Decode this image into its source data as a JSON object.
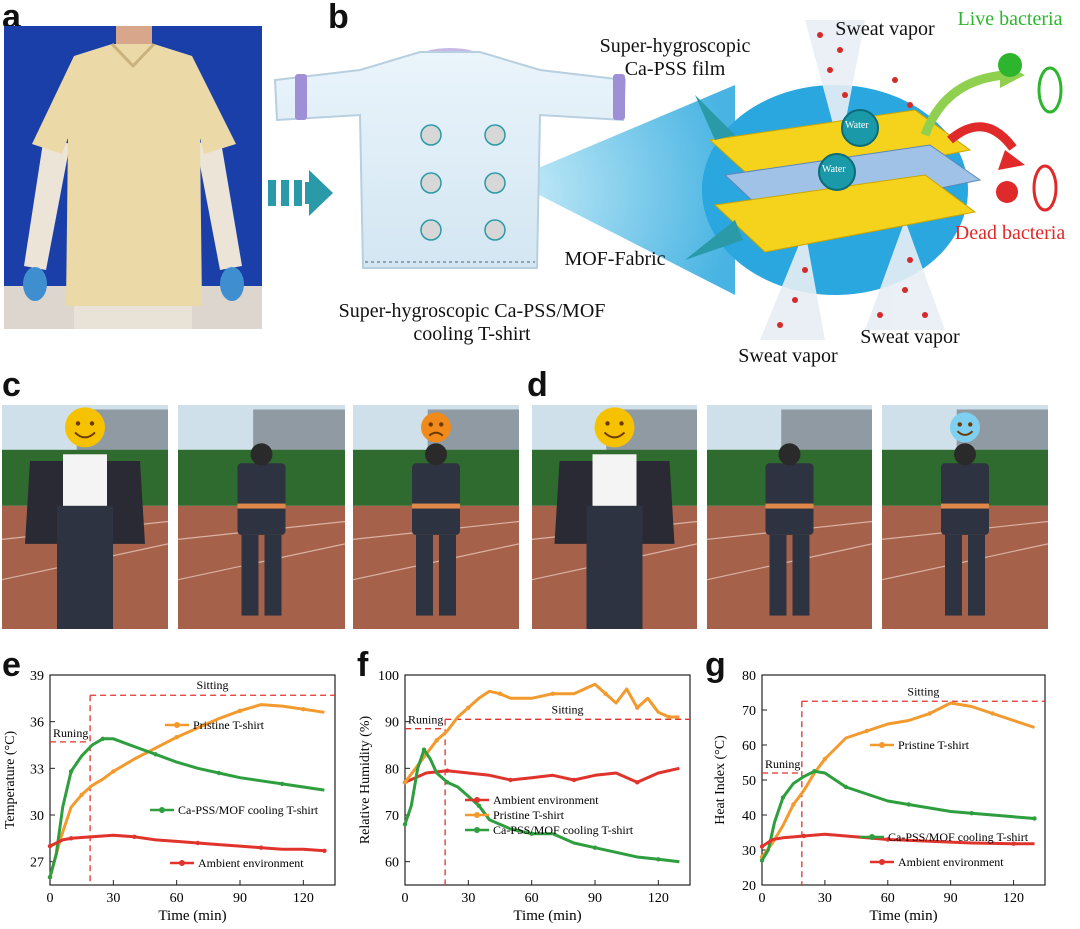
{
  "panel_labels": {
    "a": "a",
    "b": "b",
    "c": "c",
    "d": "d",
    "e": "e",
    "f": "f",
    "g": "g"
  },
  "panel_b": {
    "shirt_caption_line1": "Super-hygroscopic Ca-PSS/MOF",
    "shirt_caption_line2": "cooling T-shirt",
    "film_label_line1": "Super-hygroscopic",
    "film_label_line2": "Ca-PSS film",
    "fabric_label": "MOF-Fabric",
    "sweat_vapor_top": "Sweat vapor",
    "sweat_vapor_bottom_left": "Sweat vapor",
    "sweat_vapor_bottom_right": "Sweat vapor",
    "live_bacteria": "Live bacteria",
    "dead_bacteria": "Dead bacteria",
    "water_label": "Water",
    "colors": {
      "live": "#2db52d",
      "dead": "#e02a2a",
      "arrow": "#2a9aa8"
    }
  },
  "chart_data": [
    {
      "id": "e",
      "type": "line",
      "xlabel": "Time (min)",
      "ylabel": "Temperature (°C)",
      "xlim": [
        0,
        135
      ],
      "ylim": [
        25.5,
        39
      ],
      "xticks": [
        0,
        30,
        60,
        90,
        120
      ],
      "yticks": [
        27,
        30,
        33,
        36,
        39
      ],
      "annotations": {
        "running": "Runing",
        "sitting": "Sitting",
        "running_y": 34.7,
        "sitting_y": 37.7,
        "split_x": 19
      },
      "series": [
        {
          "name": "Pristine T-shirt",
          "color": "#f29a2e",
          "x": [
            0,
            5,
            10,
            15,
            20,
            25,
            30,
            40,
            50,
            60,
            70,
            80,
            90,
            100,
            110,
            120,
            130
          ],
          "y": [
            26,
            28.5,
            30.5,
            31.3,
            31.9,
            32.3,
            32.8,
            33.6,
            34.3,
            35.0,
            35.6,
            36.2,
            36.7,
            37.1,
            37.0,
            36.8,
            36.6
          ]
        },
        {
          "name": "Ca-PSS/MOF cooling T-shirt",
          "color": "#2e9e3e",
          "x": [
            0,
            3,
            6,
            10,
            15,
            20,
            25,
            30,
            40,
            50,
            60,
            70,
            80,
            90,
            100,
            110,
            120,
            130
          ],
          "y": [
            26,
            27.5,
            30.5,
            32.8,
            33.8,
            34.5,
            34.9,
            34.9,
            34.4,
            33.9,
            33.4,
            33.0,
            32.7,
            32.4,
            32.2,
            32.0,
            31.8,
            31.6
          ]
        },
        {
          "name": "Ambient environment",
          "color": "#e0332c",
          "x": [
            0,
            3,
            6,
            10,
            20,
            30,
            40,
            50,
            60,
            70,
            80,
            90,
            100,
            110,
            120,
            130
          ],
          "y": [
            28.0,
            28.2,
            28.4,
            28.5,
            28.6,
            28.7,
            28.6,
            28.4,
            28.3,
            28.2,
            28.1,
            28.0,
            27.9,
            27.8,
            27.8,
            27.7
          ]
        }
      ]
    },
    {
      "id": "f",
      "type": "line",
      "xlabel": "Time (min)",
      "ylabel": "Relative Humidity (%)",
      "xlim": [
        0,
        135
      ],
      "ylim": [
        55,
        100
      ],
      "xticks": [
        0,
        30,
        60,
        90,
        120
      ],
      "yticks": [
        60,
        70,
        80,
        90,
        100
      ],
      "annotations": {
        "running": "Runing",
        "sitting": "Sitting",
        "running_y": 88.5,
        "sitting_y": 90.5,
        "split_x": 19
      },
      "series": [
        {
          "name": "Ambient environment",
          "color": "#e0332c",
          "x": [
            0,
            5,
            10,
            20,
            30,
            40,
            50,
            60,
            70,
            80,
            90,
            100,
            110,
            120,
            130
          ],
          "y": [
            77,
            78,
            79,
            79.5,
            79,
            78.5,
            77.5,
            78,
            78.5,
            77.5,
            78.5,
            79,
            77,
            79,
            80
          ]
        },
        {
          "name": "Pristine T-shirt",
          "color": "#f29a2e",
          "x": [
            0,
            5,
            10,
            15,
            20,
            25,
            30,
            35,
            40,
            45,
            50,
            60,
            70,
            80,
            90,
            95,
            100,
            105,
            110,
            115,
            120,
            125,
            130
          ],
          "y": [
            77,
            80,
            83,
            86,
            88,
            91,
            93,
            95,
            96.5,
            96,
            95,
            95,
            96,
            96,
            98,
            96,
            94,
            97,
            93,
            95,
            92,
            91,
            91
          ]
        },
        {
          "name": "Ca-PSS/MOF cooling T-shirt",
          "color": "#2e9e3e",
          "x": [
            0,
            3,
            6,
            9,
            12,
            15,
            20,
            25,
            30,
            35,
            40,
            50,
            60,
            70,
            80,
            90,
            100,
            110,
            120,
            130
          ],
          "y": [
            68,
            72,
            80,
            84,
            82,
            79,
            77,
            76,
            74,
            72,
            69,
            67,
            66,
            66,
            64,
            63,
            62,
            61,
            60.5,
            60
          ]
        }
      ]
    },
    {
      "id": "g",
      "type": "line",
      "xlabel": "Time (min)",
      "ylabel": "Heat Index (°C)",
      "xlim": [
        0,
        135
      ],
      "ylim": [
        20,
        80
      ],
      "xticks": [
        0,
        30,
        60,
        90,
        120
      ],
      "yticks": [
        20,
        30,
        40,
        50,
        60,
        70,
        80
      ],
      "annotations": {
        "running": "Runing",
        "sitting": "Sitting",
        "running_y": 52,
        "sitting_y": 72.5,
        "split_x": 19
      },
      "series": [
        {
          "name": "Pristine T-shirt",
          "color": "#f29a2e",
          "x": [
            0,
            5,
            10,
            15,
            20,
            25,
            30,
            35,
            40,
            50,
            60,
            70,
            80,
            90,
            100,
            110,
            120,
            130
          ],
          "y": [
            28,
            32,
            37,
            43,
            47,
            52,
            56,
            59,
            62,
            64,
            66,
            67,
            69,
            72,
            71,
            69,
            67,
            65
          ]
        },
        {
          "name": "Ca-PSS/MOF cooling T-shirt",
          "color": "#2e9e3e",
          "x": [
            0,
            3,
            6,
            10,
            15,
            20,
            25,
            30,
            35,
            40,
            50,
            60,
            70,
            80,
            90,
            100,
            110,
            120,
            130
          ],
          "y": [
            27,
            30,
            38,
            45,
            49,
            51,
            52.5,
            52,
            50,
            48,
            46,
            44,
            43,
            42,
            41,
            40.5,
            40,
            39.5,
            39
          ]
        },
        {
          "name": "Ambient environment",
          "color": "#e0332c",
          "x": [
            0,
            5,
            10,
            20,
            30,
            40,
            60,
            80,
            100,
            120,
            130
          ],
          "y": [
            31,
            33,
            33.5,
            34,
            34.5,
            34,
            33,
            32.5,
            32,
            31.8,
            31.8
          ]
        }
      ]
    }
  ]
}
